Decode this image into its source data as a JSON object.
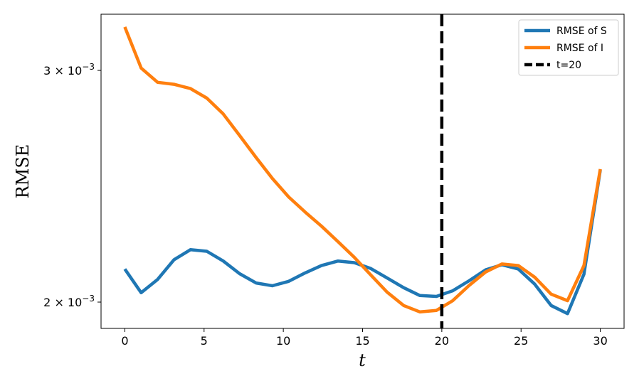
{
  "chart_data": {
    "type": "line",
    "title": "",
    "xlabel": "t",
    "ylabel": "RMSE",
    "xlim": [
      -1.5,
      31.5
    ],
    "ylim": [
      0.00191,
      0.00331
    ],
    "yscale": "log",
    "grid": false,
    "legend_position": "top-right",
    "x_ticks": [
      0,
      5,
      10,
      15,
      20,
      25,
      30
    ],
    "x_tick_labels": [
      "0",
      "5",
      "10",
      "15",
      "20",
      "25",
      "30"
    ],
    "y_ticks": [
      0.003,
      0.002
    ],
    "y_tick_labels": [
      {
        "base": "3 × 10",
        "exp": "−3"
      },
      {
        "base": "2 × 10",
        "exp": "−3"
      }
    ],
    "x": [
      0,
      1.03,
      2.07,
      3.1,
      4.14,
      5.17,
      6.21,
      7.24,
      8.28,
      9.31,
      10.34,
      11.38,
      12.41,
      13.45,
      14.48,
      15.52,
      16.55,
      17.59,
      18.62,
      19.66,
      20.69,
      21.72,
      22.76,
      23.79,
      24.83,
      25.86,
      26.9,
      27.93,
      28.97,
      30
    ],
    "series": [
      {
        "name": "RMSE of S",
        "color": "#1f77b4",
        "values": [
          0.002119,
          0.002033,
          0.002081,
          0.002154,
          0.002192,
          0.002186,
          0.002149,
          0.002102,
          0.002068,
          0.002058,
          0.002074,
          0.002105,
          0.002132,
          0.002149,
          0.002143,
          0.002121,
          0.002086,
          0.002051,
          0.002023,
          0.00202,
          0.00204,
          0.002076,
          0.002116,
          0.002135,
          0.002119,
          0.002064,
          0.001988,
          0.00196,
          0.0021,
          0.00252
        ]
      },
      {
        "name": "RMSE of I",
        "color": "#ff7f0e",
        "values": [
          0.003237,
          0.003012,
          0.002938,
          0.002928,
          0.002906,
          0.002858,
          0.00278,
          0.002677,
          0.002576,
          0.002483,
          0.002404,
          0.002341,
          0.002284,
          0.002223,
          0.002163,
          0.002097,
          0.002035,
          0.001988,
          0.001966,
          0.001971,
          0.002005,
          0.002059,
          0.002108,
          0.002138,
          0.002132,
          0.002089,
          0.002028,
          0.002005,
          0.002132,
          0.002524
        ]
      }
    ],
    "vline": {
      "x": 20,
      "label": "t=20",
      "color": "#000000",
      "style": "dashed"
    }
  }
}
